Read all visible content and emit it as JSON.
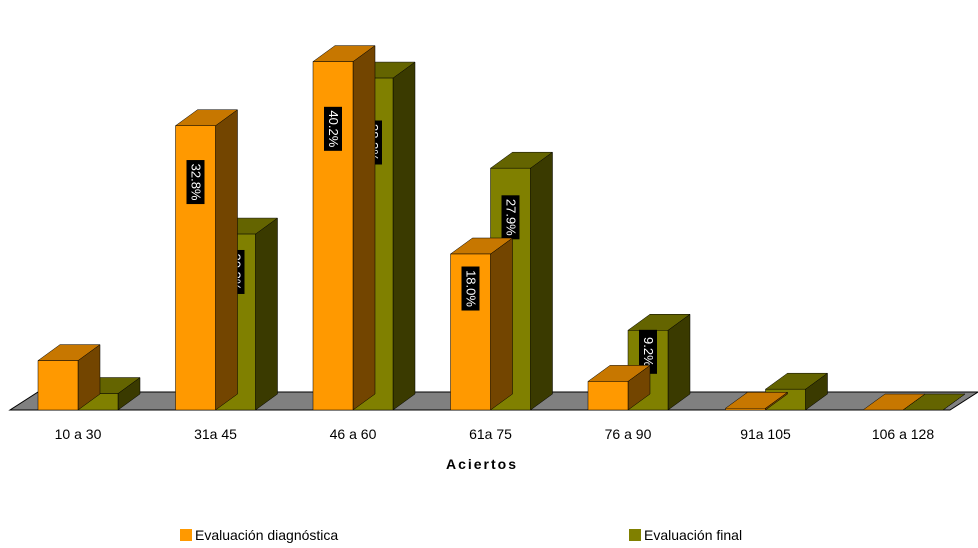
{
  "chart_data": {
    "type": "bar",
    "xlabel": "Aciertos",
    "categories": [
      "10 a 30",
      "31a 45",
      "46 a 60",
      "61a 75",
      "76 a 90",
      "91a 105",
      "106 a 128"
    ],
    "series": [
      {
        "name": "Evaluación diagnóstica",
        "color": "#FF9900",
        "values": [
          5.7,
          32.8,
          40.2,
          18.0,
          3.3,
          0.2,
          0.0
        ],
        "labels": [
          "",
          "32.8%",
          "40.2%",
          "18.0%",
          "",
          "",
          ""
        ]
      },
      {
        "name": "Evaluación final",
        "color": "#808000",
        "values": [
          1.9,
          20.3,
          38.3,
          27.9,
          9.2,
          2.4,
          0.0
        ],
        "labels": [
          "",
          "20.3%",
          "38.3%",
          "27.9%",
          "9.2%",
          "",
          ""
        ]
      }
    ],
    "ylim": [
      0,
      45
    ],
    "grid": false,
    "legend_position": "bottom"
  }
}
